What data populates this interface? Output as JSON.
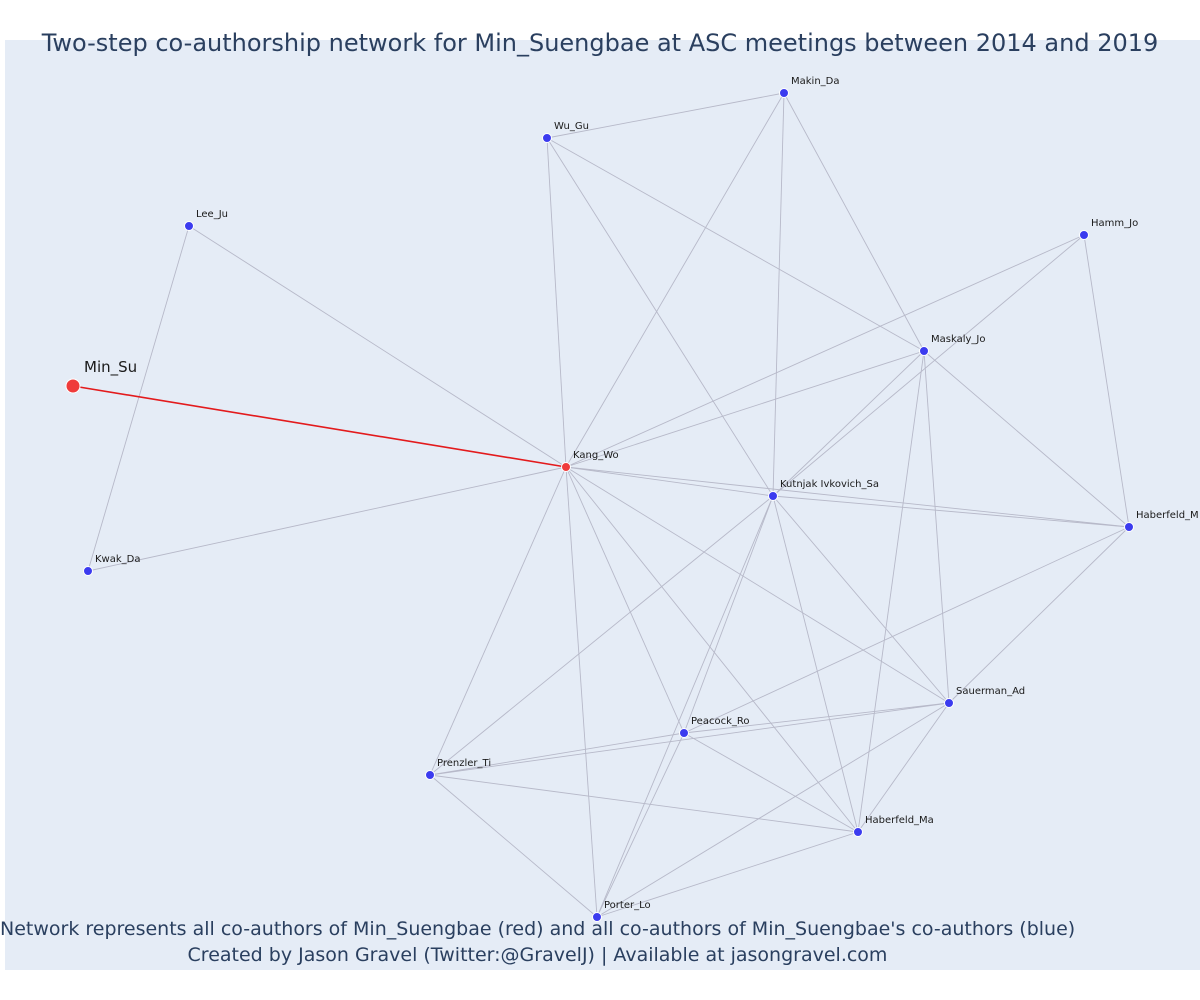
{
  "title": "Two-step co-authorship network for Min_Suengbae at ASC meetings between 2014 and 2019",
  "captions": [
    "Network represents all co-authors of Min_Suengbae (red) and all co-authors of Min_Suengbae's co-authors (blue)",
    "Created by Jason Gravel (Twitter:@GravelJ) | Available at jasongravel.com"
  ],
  "colors": {
    "background": "#e5ecf6",
    "focal_node": "#ef3b3b",
    "focal_edge": "#e31a1c",
    "coauthor_node": "#3b3bef",
    "edge": "#b7b9c9",
    "text": "#2a3f5f"
  },
  "chart_data": {
    "type": "network",
    "nodes": [
      {
        "id": "Min_Su",
        "label": "Min_Su",
        "group": "focal"
      },
      {
        "id": "Kang_Wo",
        "label": "Kang_Wo",
        "group": "coauthor"
      },
      {
        "id": "Lee_Ju",
        "label": "Lee_Ju",
        "group": "second"
      },
      {
        "id": "Kwak_Da",
        "label": "Kwak_Da",
        "group": "second"
      },
      {
        "id": "Wu_Gu",
        "label": "Wu_Gu",
        "group": "second"
      },
      {
        "id": "Makin_Da",
        "label": "Makin_Da",
        "group": "second"
      },
      {
        "id": "Hamm_Jo",
        "label": "Hamm_Jo",
        "group": "second"
      },
      {
        "id": "Maskaly_Jo",
        "label": "Maskaly_Jo",
        "group": "second"
      },
      {
        "id": "Kutnjak_Ivkovich_Sa",
        "label": "Kutnjak Ivkovich_Sa",
        "group": "second"
      },
      {
        "id": "Haberfeld_M",
        "label": "Haberfeld_M",
        "group": "second"
      },
      {
        "id": "Sauerman_Ad",
        "label": "Sauerman_Ad",
        "group": "second"
      },
      {
        "id": "Peacock_Ro",
        "label": "Peacock_Ro",
        "group": "second"
      },
      {
        "id": "Prenzler_Ti",
        "label": "Prenzler_Ti",
        "group": "second"
      },
      {
        "id": "Haberfeld_Ma",
        "label": "Haberfeld_Ma",
        "group": "second"
      },
      {
        "id": "Porter_Lo",
        "label": "Porter_Lo",
        "group": "second"
      }
    ],
    "edges": [
      [
        "Min_Su",
        "Kang_Wo"
      ],
      [
        "Lee_Ju",
        "Kwak_Da"
      ],
      [
        "Lee_Ju",
        "Kang_Wo"
      ],
      [
        "Kwak_Da",
        "Kang_Wo"
      ],
      [
        "Wu_Gu",
        "Makin_Da"
      ],
      [
        "Wu_Gu",
        "Kang_Wo"
      ],
      [
        "Wu_Gu",
        "Kutnjak_Ivkovich_Sa"
      ],
      [
        "Wu_Gu",
        "Maskaly_Jo"
      ],
      [
        "Makin_Da",
        "Kang_Wo"
      ],
      [
        "Makin_Da",
        "Kutnjak_Ivkovich_Sa"
      ],
      [
        "Makin_Da",
        "Maskaly_Jo"
      ],
      [
        "Hamm_Jo",
        "Kang_Wo"
      ],
      [
        "Hamm_Jo",
        "Kutnjak_Ivkovich_Sa"
      ],
      [
        "Hamm_Jo",
        "Haberfeld_M"
      ],
      [
        "Maskaly_Jo",
        "Kang_Wo"
      ],
      [
        "Maskaly_Jo",
        "Kutnjak_Ivkovich_Sa"
      ],
      [
        "Maskaly_Jo",
        "Haberfeld_M"
      ],
      [
        "Maskaly_Jo",
        "Sauerman_Ad"
      ],
      [
        "Maskaly_Jo",
        "Haberfeld_Ma"
      ],
      [
        "Kang_Wo",
        "Kutnjak_Ivkovich_Sa"
      ],
      [
        "Kang_Wo",
        "Haberfeld_M"
      ],
      [
        "Kang_Wo",
        "Sauerman_Ad"
      ],
      [
        "Kang_Wo",
        "Peacock_Ro"
      ],
      [
        "Kang_Wo",
        "Haberfeld_Ma"
      ],
      [
        "Kang_Wo",
        "Prenzler_Ti"
      ],
      [
        "Kang_Wo",
        "Porter_Lo"
      ],
      [
        "Kutnjak_Ivkovich_Sa",
        "Haberfeld_M"
      ],
      [
        "Kutnjak_Ivkovich_Sa",
        "Sauerman_Ad"
      ],
      [
        "Kutnjak_Ivkovich_Sa",
        "Haberfeld_Ma"
      ],
      [
        "Kutnjak_Ivkovich_Sa",
        "Prenzler_Ti"
      ],
      [
        "Kutnjak_Ivkovich_Sa",
        "Porter_Lo"
      ],
      [
        "Kutnjak_Ivkovich_Sa",
        "Peacock_Ro"
      ],
      [
        "Haberfeld_M",
        "Sauerman_Ad"
      ],
      [
        "Haberfeld_M",
        "Peacock_Ro"
      ],
      [
        "Sauerman_Ad",
        "Peacock_Ro"
      ],
      [
        "Sauerman_Ad",
        "Prenzler_Ti"
      ],
      [
        "Sauerman_Ad",
        "Haberfeld_Ma"
      ],
      [
        "Sauerman_Ad",
        "Porter_Lo"
      ],
      [
        "Peacock_Ro",
        "Prenzler_Ti"
      ],
      [
        "Peacock_Ro",
        "Haberfeld_Ma"
      ],
      [
        "Peacock_Ro",
        "Porter_Lo"
      ],
      [
        "Prenzler_Ti",
        "Haberfeld_Ma"
      ],
      [
        "Prenzler_Ti",
        "Porter_Lo"
      ],
      [
        "Haberfeld_Ma",
        "Porter_Lo"
      ]
    ]
  }
}
